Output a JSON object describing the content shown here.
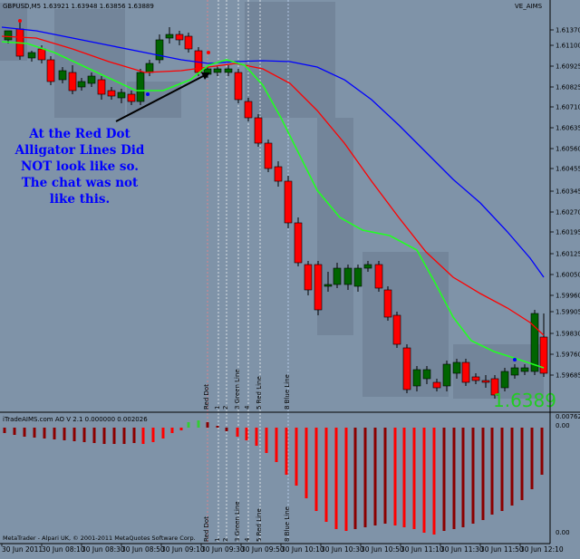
{
  "header": {
    "symbol_info": "GBPUSD,M5  1.63921 1.63948 1.63856 1.63889",
    "indicator_name": "VE_AIMS"
  },
  "indicator_header": "iTradeAIMS.com AO V 2.1 0.000000 0.002026",
  "footer": "MetaTrader - Alpari UK, © 2001-2011 MetaQuotes Software Corp.",
  "annotation": {
    "lines": [
      "At the Red Dot",
      "Alligator Lines Did",
      "NOT look like so.",
      "The chat was not",
      "like this."
    ]
  },
  "big_price": "1.6389",
  "vertical_labels": [
    "Red Dot",
    "1",
    "2",
    "3 Green Line",
    "4",
    "5 Red Line",
    "8 Blue Line"
  ],
  "price_axis": [
    "1.61370",
    "1.61100",
    "1.60925",
    "1.60825",
    "1.60710",
    "1.60635",
    "1.60560",
    "1.60455",
    "1.60345",
    "1.60270",
    "1.60195",
    "1.60125",
    "1.60050",
    "1.59960",
    "1.59905",
    "1.59830",
    "1.59760",
    "1.59685"
  ],
  "indicator_axis": [
    "0.00762",
    "0.00",
    "0.00"
  ],
  "time_axis": [
    "30 Jun 2011",
    "30 Jun 08:10",
    "30 Jun 08:30",
    "30 Jun 08:50",
    "30 Jun 09:10",
    "30 Jun 09:30",
    "30 Jun 09:50",
    "30 Jun 10:10",
    "30 Jun 10:30",
    "30 Jun 10:50",
    "30 Jun 11:10",
    "30 Jun 11:30",
    "30 Jun 11:50",
    "30 Jun 12:10"
  ],
  "colors": {
    "background": "#7f93a8",
    "bull_candle": "#006400",
    "bear_candle": "#ff0000",
    "jaw_line": "#0000ff",
    "teeth_line": "#ff0000",
    "lips_line": "#00ff00",
    "ao_up": "#ff0000",
    "ao_down": "#8b0000",
    "ao_green": "#33cc33",
    "grid_band": "#6a7a8e"
  }
}
